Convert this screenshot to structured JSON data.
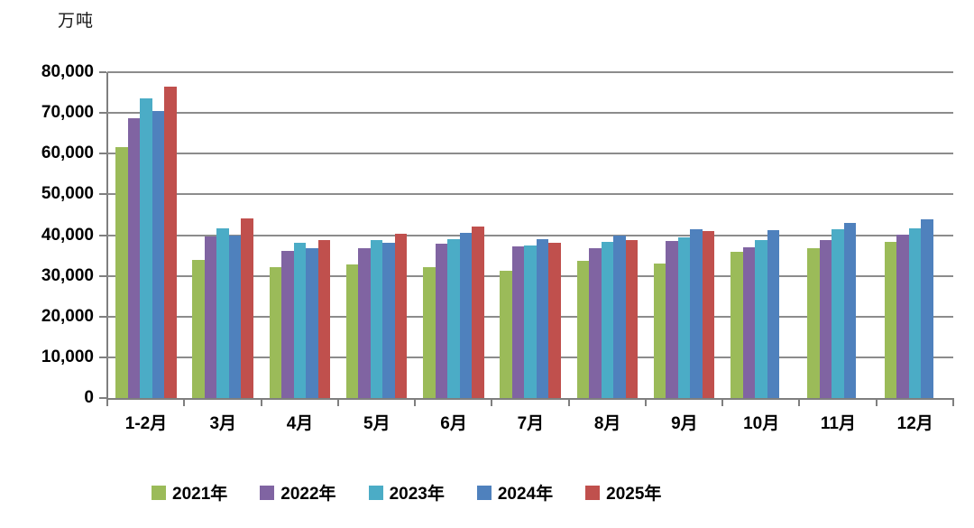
{
  "chart": {
    "unit_label": "万吨"
  },
  "y_axis": {
    "tick_labels": [
      "0",
      "10,000",
      "20,000",
      "30,000",
      "40,000",
      "50,000",
      "60,000",
      "70,000",
      "80,000"
    ]
  },
  "chart_data": {
    "type": "bar",
    "title": "",
    "ylabel": "万吨",
    "xlabel": "",
    "ylim": [
      0,
      80000
    ],
    "ytick_step": 10000,
    "grid": true,
    "legend_position": "bottom",
    "categories": [
      "1-2月",
      "3月",
      "4月",
      "5月",
      "6月",
      "7月",
      "8月",
      "9月",
      "10月",
      "11月",
      "12月"
    ],
    "series": [
      {
        "name": "2021年",
        "color": "#9BBB59",
        "values": [
          61700,
          34000,
          32200,
          32700,
          32200,
          31200,
          33600,
          33100,
          35800,
          36900,
          38300
        ]
      },
      {
        "name": "2022年",
        "color": "#8064A2",
        "values": [
          68600,
          39600,
          36200,
          36700,
          37800,
          37200,
          36900,
          38500,
          37100,
          38700,
          40100
        ]
      },
      {
        "name": "2023年",
        "color": "#4BACC6",
        "values": [
          73500,
          41700,
          38200,
          38700,
          38900,
          37500,
          38300,
          39400,
          38700,
          41500,
          41600
        ]
      },
      {
        "name": "2024年",
        "color": "#4F81BD",
        "values": [
          70500,
          40000,
          36900,
          38200,
          40600,
          38900,
          39800,
          41500,
          41300,
          42900,
          43900
        ]
      },
      {
        "name": "2025年",
        "color": "#C0504D",
        "values": [
          76500,
          44200,
          38700,
          40400,
          42200,
          38200,
          38800,
          40900,
          null,
          null,
          null
        ]
      }
    ]
  }
}
